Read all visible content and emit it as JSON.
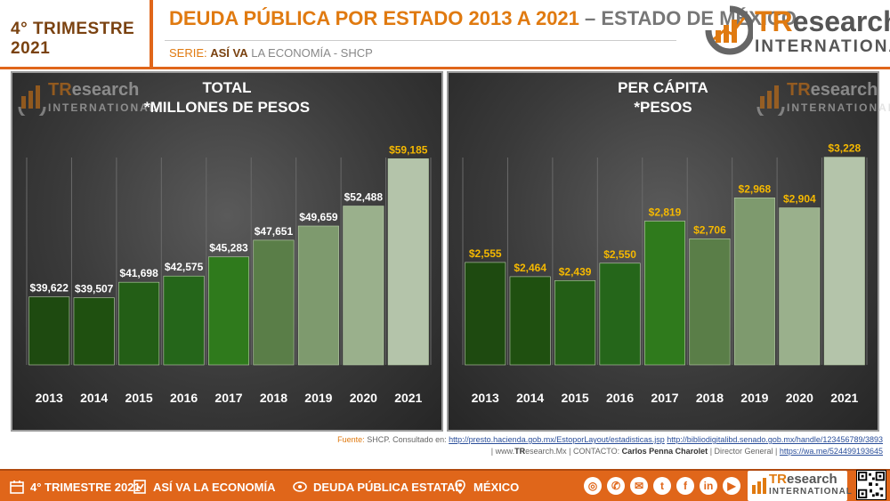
{
  "header": {
    "quarter_badge": "4° TRIMESTRE 2021",
    "title_main": "DEUDA PÚBLICA POR ESTADO 2013 A 2021",
    "title_sep": " – ",
    "title_sub": "ESTADO DE MÉXICO",
    "series_label": "SERIE:",
    "series_bold": "ASÍ VA",
    "series_rest": "LA ECONOMÍA - SHCP",
    "brand_tr": "TR",
    "brand_research": "esearch",
    "brand_intl": "INTERNATIONAL"
  },
  "colors": {
    "accent_orange": "#e0661a",
    "bar_label_white": "#ffffff",
    "bar_label_yellow": "#f5b800",
    "bar_fills": [
      "#1e4a10",
      "#1f5010",
      "#235e16",
      "#25661a",
      "#2f7a1c",
      "#5a7e48",
      "#7e9a6e",
      "#9ab08c",
      "#b4c4aa"
    ]
  },
  "chart_data": [
    {
      "type": "bar",
      "title": "TOTAL",
      "subtitle": "*MILLONES DE PESOS",
      "categories": [
        "2013",
        "2014",
        "2015",
        "2016",
        "2017",
        "2018",
        "2019",
        "2020",
        "2021"
      ],
      "values": [
        39622,
        39507,
        41698,
        42575,
        45283,
        47651,
        49659,
        52488,
        59185
      ],
      "value_labels": [
        "$39,622",
        "$39,507",
        "$41,698",
        "$42,575",
        "$45,283",
        "$47,651",
        "$49,659",
        "$52,488",
        "$59,185"
      ],
      "ylim": [
        30000,
        61000
      ],
      "grid": true,
      "label_color": "#ffffff",
      "last_label_color": "#f5b800"
    },
    {
      "type": "bar",
      "title": "PER CÁPITA",
      "subtitle": "*PESOS",
      "categories": [
        "2013",
        "2014",
        "2015",
        "2016",
        "2017",
        "2018",
        "2019",
        "2020",
        "2021"
      ],
      "values": [
        2555,
        2464,
        2439,
        2550,
        2819,
        2706,
        2968,
        2904,
        3228
      ],
      "value_labels": [
        "$2,555",
        "$2,464",
        "$2,439",
        "$2,550",
        "$2,819",
        "$2,706",
        "$2,968",
        "$2,904",
        "$3,228"
      ],
      "ylim": [
        1900,
        3300
      ],
      "grid": true,
      "label_color": "#f5b800",
      "last_label_color": "#f5b800"
    }
  ],
  "source": {
    "label": "Fuente:",
    "org": "SHCP.",
    "consulted": "Consultado en:",
    "link1": "http://presto.hacienda.gob.mx/EstoporLayout/estadisticas.jsp",
    "link2": "http://bibliodigitalibd.senado.gob.mx/handle/123456789/3893",
    "line2_a": "| www.",
    "line2_tr": "TR",
    "line2_b": "esearch.Mx | CONTACTO:",
    "contact": "Carlos Penna Charolet",
    "role": "| Director General |",
    "link3": "https://wa.me/524499193645"
  },
  "footer": {
    "item1": "4° TRIMESTRE 2021",
    "item2": "ASÍ VA LA ECONOMÍA",
    "item3": "DEUDA PÚBLICA ESTATAL",
    "item4": "MÉXICO",
    "brand_tr": "TR",
    "brand_research": "esearch",
    "brand_intl": "INTERNATIONAL",
    "social_icons": [
      "globe-icon",
      "phone-icon",
      "mail-icon",
      "twitter-icon",
      "facebook-icon",
      "linkedin-icon",
      "youtube-icon"
    ]
  }
}
